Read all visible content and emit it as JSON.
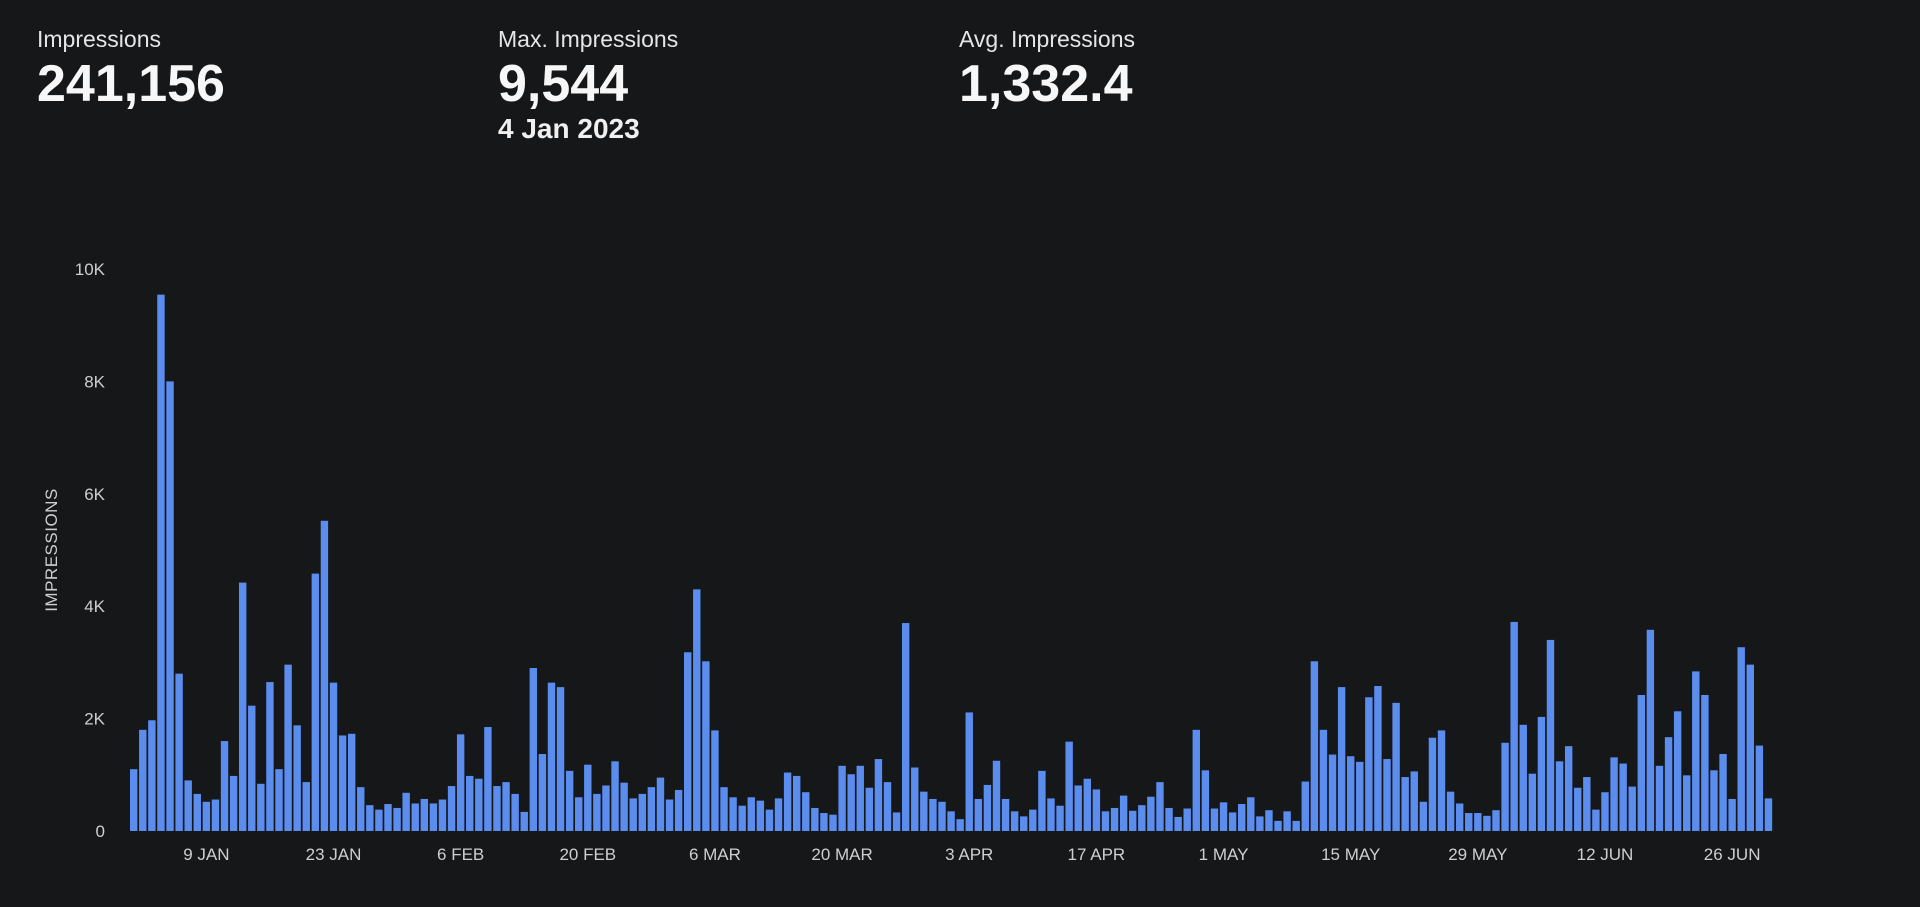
{
  "stats": [
    {
      "label": "Impressions",
      "value": "241,156",
      "sub": ""
    },
    {
      "label": "Max. Impressions",
      "value": "9,544",
      "sub": "4 Jan 2023"
    },
    {
      "label": "Avg. Impressions",
      "value": "1,332.4",
      "sub": ""
    }
  ],
  "chart_data": {
    "type": "bar",
    "title": "",
    "xlabel": "",
    "ylabel": "IMPRESSIONS",
    "ylim": [
      0,
      10000
    ],
    "yticks": [
      0,
      2000,
      4000,
      6000,
      8000,
      10000
    ],
    "ytick_labels": [
      "0",
      "2K",
      "4K",
      "6K",
      "8K",
      "10K"
    ],
    "bar_color": "#5b8def",
    "start_date": "2023-01-01",
    "xtick_labels": [
      {
        "label": "9 JAN",
        "date": "2023-01-09"
      },
      {
        "label": "23 JAN",
        "date": "2023-01-23"
      },
      {
        "label": "6 FEB",
        "date": "2023-02-06"
      },
      {
        "label": "20 FEB",
        "date": "2023-02-20"
      },
      {
        "label": "6 MAR",
        "date": "2023-03-06"
      },
      {
        "label": "20 MAR",
        "date": "2023-03-20"
      },
      {
        "label": "3 APR",
        "date": "2023-04-03"
      },
      {
        "label": "17 APR",
        "date": "2023-04-17"
      },
      {
        "label": "1 MAY",
        "date": "2023-05-01"
      },
      {
        "label": "15 MAY",
        "date": "2023-05-15"
      },
      {
        "label": "29 MAY",
        "date": "2023-05-29"
      },
      {
        "label": "12 JUN",
        "date": "2023-06-12"
      },
      {
        "label": "26 JUN",
        "date": "2023-06-26"
      }
    ],
    "values": [
      1100,
      1800,
      1970,
      9544,
      8000,
      2800,
      900,
      660,
      520,
      560,
      1600,
      980,
      4420,
      2230,
      840,
      2650,
      1100,
      2960,
      1880,
      870,
      4580,
      5520,
      2640,
      1700,
      1730,
      780,
      460,
      380,
      480,
      410,
      680,
      490,
      570,
      490,
      560,
      800,
      1720,
      980,
      930,
      1850,
      800,
      870,
      660,
      340,
      2900,
      1370,
      2640,
      2560,
      1070,
      600,
      1180,
      660,
      810,
      1240,
      860,
      580,
      660,
      780,
      950,
      560,
      730,
      3180,
      4300,
      3020,
      1790,
      780,
      600,
      450,
      600,
      540,
      380,
      580,
      1040,
      980,
      690,
      410,
      320,
      290,
      1160,
      1010,
      1160,
      770,
      1280,
      870,
      330,
      3700,
      1130,
      700,
      570,
      520,
      350,
      210,
      2110,
      570,
      820,
      1250,
      570,
      350,
      260,
      380,
      1070,
      580,
      450,
      1590,
      810,
      930,
      740,
      350,
      410,
      630,
      360,
      460,
      610,
      870,
      410,
      250,
      400,
      1800,
      1080,
      400,
      510,
      330,
      480,
      600,
      260,
      370,
      180,
      350,
      180,
      880,
      3020,
      1800,
      1360,
      2560,
      1330,
      1230,
      2380,
      2580,
      1280,
      2280,
      960,
      1060,
      520,
      1660,
      1790,
      700,
      490,
      320,
      320,
      270,
      370,
      1570,
      3720,
      1890,
      1020,
      2030,
      3400,
      1240,
      1510,
      770,
      960,
      380,
      690,
      1310,
      1200,
      790,
      2420,
      3580,
      1160,
      1670,
      2130,
      990,
      2840,
      2420,
      1080,
      1370,
      570,
      3270,
      2960,
      1520,
      580
    ]
  }
}
